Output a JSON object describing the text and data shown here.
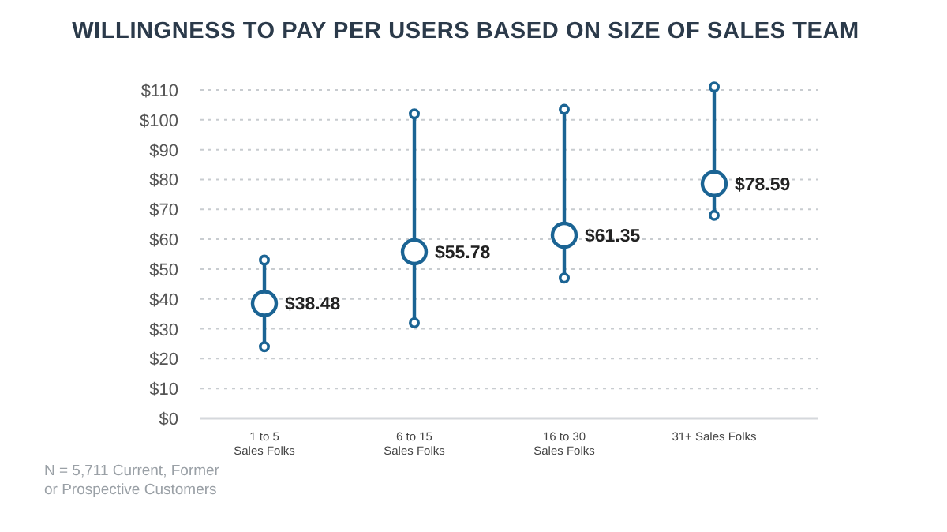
{
  "chart_data": {
    "type": "scatter",
    "title": "WILLINGNESS TO PAY PER USERS BASED ON SIZE OF SALES TEAM",
    "categories": [
      "1 to 5\nSales Folks",
      "6 to 15\nSales Folks",
      "16 to 30\nSales Folks",
      "31+ Sales Folks"
    ],
    "values": [
      38.48,
      55.78,
      61.35,
      78.59
    ],
    "errors": [
      [
        24,
        53
      ],
      [
        32,
        102
      ],
      [
        47,
        103.5
      ],
      [
        68,
        111
      ]
    ],
    "value_labels": [
      "$38.48",
      "$55.78",
      "$61.35",
      "$78.59"
    ],
    "color": "#1b6494",
    "marker": "circle",
    "grid": "y",
    "ylim": [
      0,
      110
    ],
    "yticks": [
      {
        "value": 0,
        "label": "$0"
      },
      {
        "value": 10,
        "label": "$10"
      },
      {
        "value": 20,
        "label": "$20"
      },
      {
        "value": 30,
        "label": "$30"
      },
      {
        "value": 40,
        "label": "$40"
      },
      {
        "value": 50,
        "label": "$50"
      },
      {
        "value": 60,
        "label": "$60"
      },
      {
        "value": 70,
        "label": "$70"
      },
      {
        "value": 80,
        "label": "$80"
      },
      {
        "value": 90,
        "label": "$90"
      },
      {
        "value": 100,
        "label": "$100"
      },
      {
        "value": 110,
        "label": "$110"
      }
    ],
    "annotations": [
      "N = 5,711 Current, Former\nor Prospective Customers"
    ]
  }
}
